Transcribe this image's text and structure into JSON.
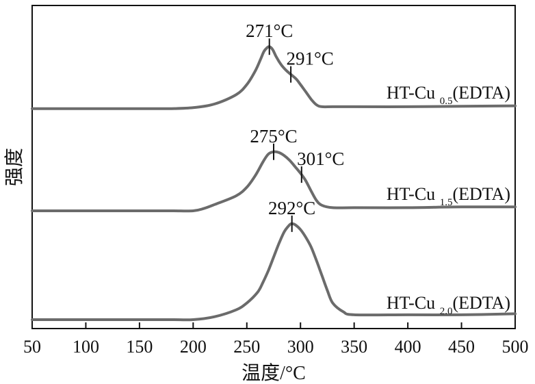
{
  "chart_data": {
    "type": "line",
    "xlabel": "温度/°C",
    "ylabel": "强度",
    "xlim": [
      50,
      500
    ],
    "xticks": [
      50,
      100,
      150,
      200,
      250,
      300,
      350,
      400,
      450,
      500
    ],
    "grid": false,
    "line_color": "#6b6b6b",
    "series": [
      {
        "label_main": "HT-Cu",
        "label_sub": "0.5",
        "label_suffix": "(EDTA)",
        "x": [
          50,
          100,
          150,
          180,
          200,
          220,
          240,
          250,
          258,
          263,
          266,
          269,
          271,
          274,
          277,
          280,
          283,
          287,
          291,
          296,
          300,
          305,
          310,
          315,
          320,
          330,
          350,
          400,
          450,
          500
        ],
        "y": [
          0.01,
          0.01,
          0.01,
          0.01,
          0.02,
          0.06,
          0.16,
          0.27,
          0.42,
          0.55,
          0.63,
          0.67,
          0.68,
          0.65,
          0.58,
          0.52,
          0.47,
          0.42,
          0.38,
          0.33,
          0.27,
          0.19,
          0.11,
          0.05,
          0.03,
          0.03,
          0.03,
          0.03,
          0.035,
          0.04
        ],
        "annotations": [
          {
            "x": 271,
            "label": "271°C"
          },
          {
            "x": 291,
            "label": "291°C"
          }
        ]
      },
      {
        "label_main": "HT-Cu",
        "label_sub": "1.5",
        "label_suffix": "(EDTA)",
        "x": [
          50,
          100,
          150,
          180,
          200,
          210,
          220,
          240,
          250,
          258,
          265,
          270,
          275,
          280,
          285,
          290,
          295,
          301,
          305,
          310,
          315,
          320,
          330,
          350,
          400,
          450,
          500
        ],
        "y": [
          0.0,
          0.0,
          0.0,
          0.0,
          0.0,
          0.03,
          0.08,
          0.19,
          0.3,
          0.45,
          0.62,
          0.72,
          0.75,
          0.74,
          0.7,
          0.64,
          0.56,
          0.46,
          0.38,
          0.25,
          0.13,
          0.07,
          0.04,
          0.04,
          0.04,
          0.05,
          0.05
        ],
        "annotations": [
          {
            "x": 275,
            "label": "275°C"
          },
          {
            "x": 301,
            "label": "301°C"
          }
        ]
      },
      {
        "label_main": "HT-Cu",
        "label_sub": "2.0",
        "label_suffix": "(EDTA)",
        "x": [
          50,
          100,
          150,
          180,
          200,
          220,
          240,
          250,
          260,
          265,
          270,
          275,
          280,
          285,
          290,
          292,
          295,
          300,
          305,
          310,
          315,
          320,
          325,
          330,
          340,
          350,
          400,
          450,
          500
        ],
        "y": [
          0.0,
          0.0,
          0.0,
          0.0,
          0.0,
          0.03,
          0.1,
          0.17,
          0.28,
          0.38,
          0.5,
          0.64,
          0.78,
          0.9,
          0.97,
          0.98,
          0.97,
          0.92,
          0.84,
          0.74,
          0.6,
          0.45,
          0.3,
          0.17,
          0.08,
          0.05,
          0.05,
          0.05,
          0.06
        ],
        "annotations": [
          {
            "x": 292,
            "label": "292°C"
          }
        ]
      }
    ]
  }
}
